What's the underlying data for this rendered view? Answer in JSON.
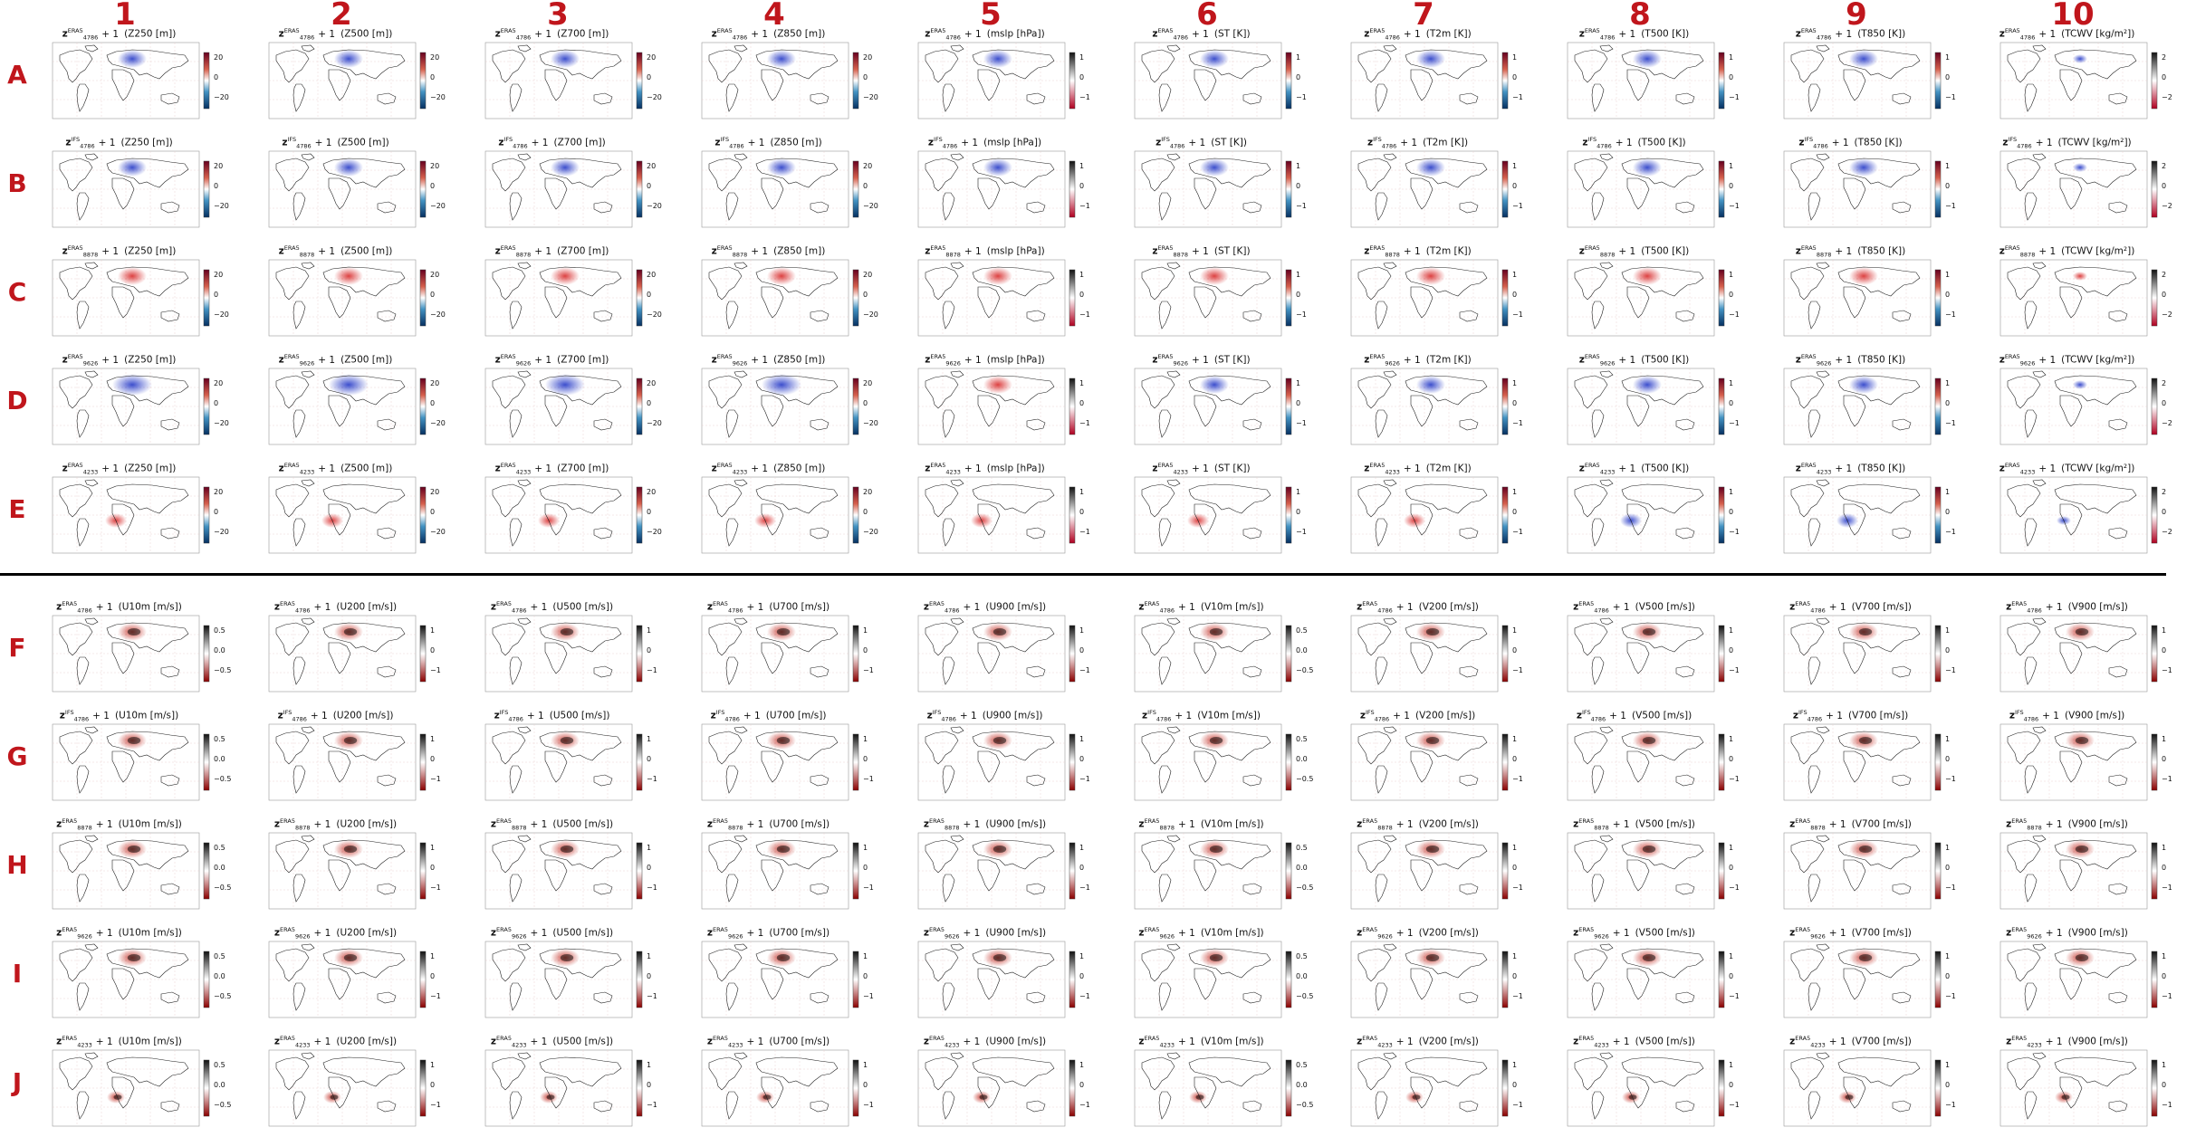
{
  "columns": [
    "1",
    "2",
    "3",
    "4",
    "5",
    "6",
    "7",
    "8",
    "9",
    "10"
  ],
  "rows": [
    "A",
    "B",
    "C",
    "D",
    "E",
    "F",
    "G",
    "H",
    "I",
    "J"
  ],
  "title_plus": "+ 1",
  "row_titles": {
    "A": {
      "sup": "ERA5",
      "sub": "4786"
    },
    "B": {
      "sup": "IFS",
      "sub": "4786"
    },
    "C": {
      "sup": "ERA5",
      "sub": "8878"
    },
    "D": {
      "sup": "ERA5",
      "sub": "9626"
    },
    "E": {
      "sup": "ERA5",
      "sub": "4233"
    },
    "F": {
      "sup": "ERA5",
      "sub": "4786"
    },
    "G": {
      "sup": "IFS",
      "sub": "4786"
    },
    "H": {
      "sup": "ERA5",
      "sub": "8878"
    },
    "I": {
      "sup": "ERA5",
      "sub": "9626"
    },
    "J": {
      "sup": "ERA5",
      "sub": "4233"
    }
  },
  "top_variables": [
    "(Z250 [m])",
    "(Z500 [m])",
    "(Z700 [m])",
    "(Z850 [m])",
    "(mslp [hPa])",
    "(ST [K])",
    "(T2m [K])",
    "(T500 [K])",
    "(T850 [K])",
    "(TCWV [kg/m²])"
  ],
  "bottom_variables": [
    "(U10m [m/s])",
    "(U200 [m/s])",
    "(U500 [m/s])",
    "(U700 [m/s])",
    "(U900 [m/s])",
    "(V10m [m/s])",
    "(V200 [m/s])",
    "(V500 [m/s])",
    "(V700 [m/s])",
    "(V900 [m/s])"
  ],
  "colorbar_ticks": {
    "z": [
      "20",
      "0",
      "−20"
    ],
    "unit": [
      "1",
      "0",
      "−1"
    ],
    "tcwv": [
      "2",
      "0",
      "−2"
    ],
    "half": [
      "0.5",
      "0.0",
      "−0.5"
    ]
  },
  "colorbar_kind_top": [
    "z",
    "z",
    "z",
    "z",
    "unit",
    "unit",
    "unit",
    "unit",
    "unit",
    "tcwv"
  ],
  "colorbar_kind_bottom": [
    "half",
    "unit",
    "unit",
    "unit",
    "unit",
    "half",
    "unit",
    "unit",
    "unit",
    "unit"
  ],
  "colors": {
    "label_red": "#c0161c",
    "rdbu_top": "#67001f",
    "rdbu_bottom": "#053061",
    "positive_blob": "#d62020",
    "negative_blob": "#1a2fc4",
    "wind_dark": "#111111",
    "wind_red": "#c0261c"
  },
  "chart_data": {
    "type": "heatmap",
    "description_grid": "10 x 10 small multiples of world maps showing perturbation fields",
    "top_row_colormap": "blue-white-red",
    "bottom_row_colormap": "red-white-black"
  }
}
